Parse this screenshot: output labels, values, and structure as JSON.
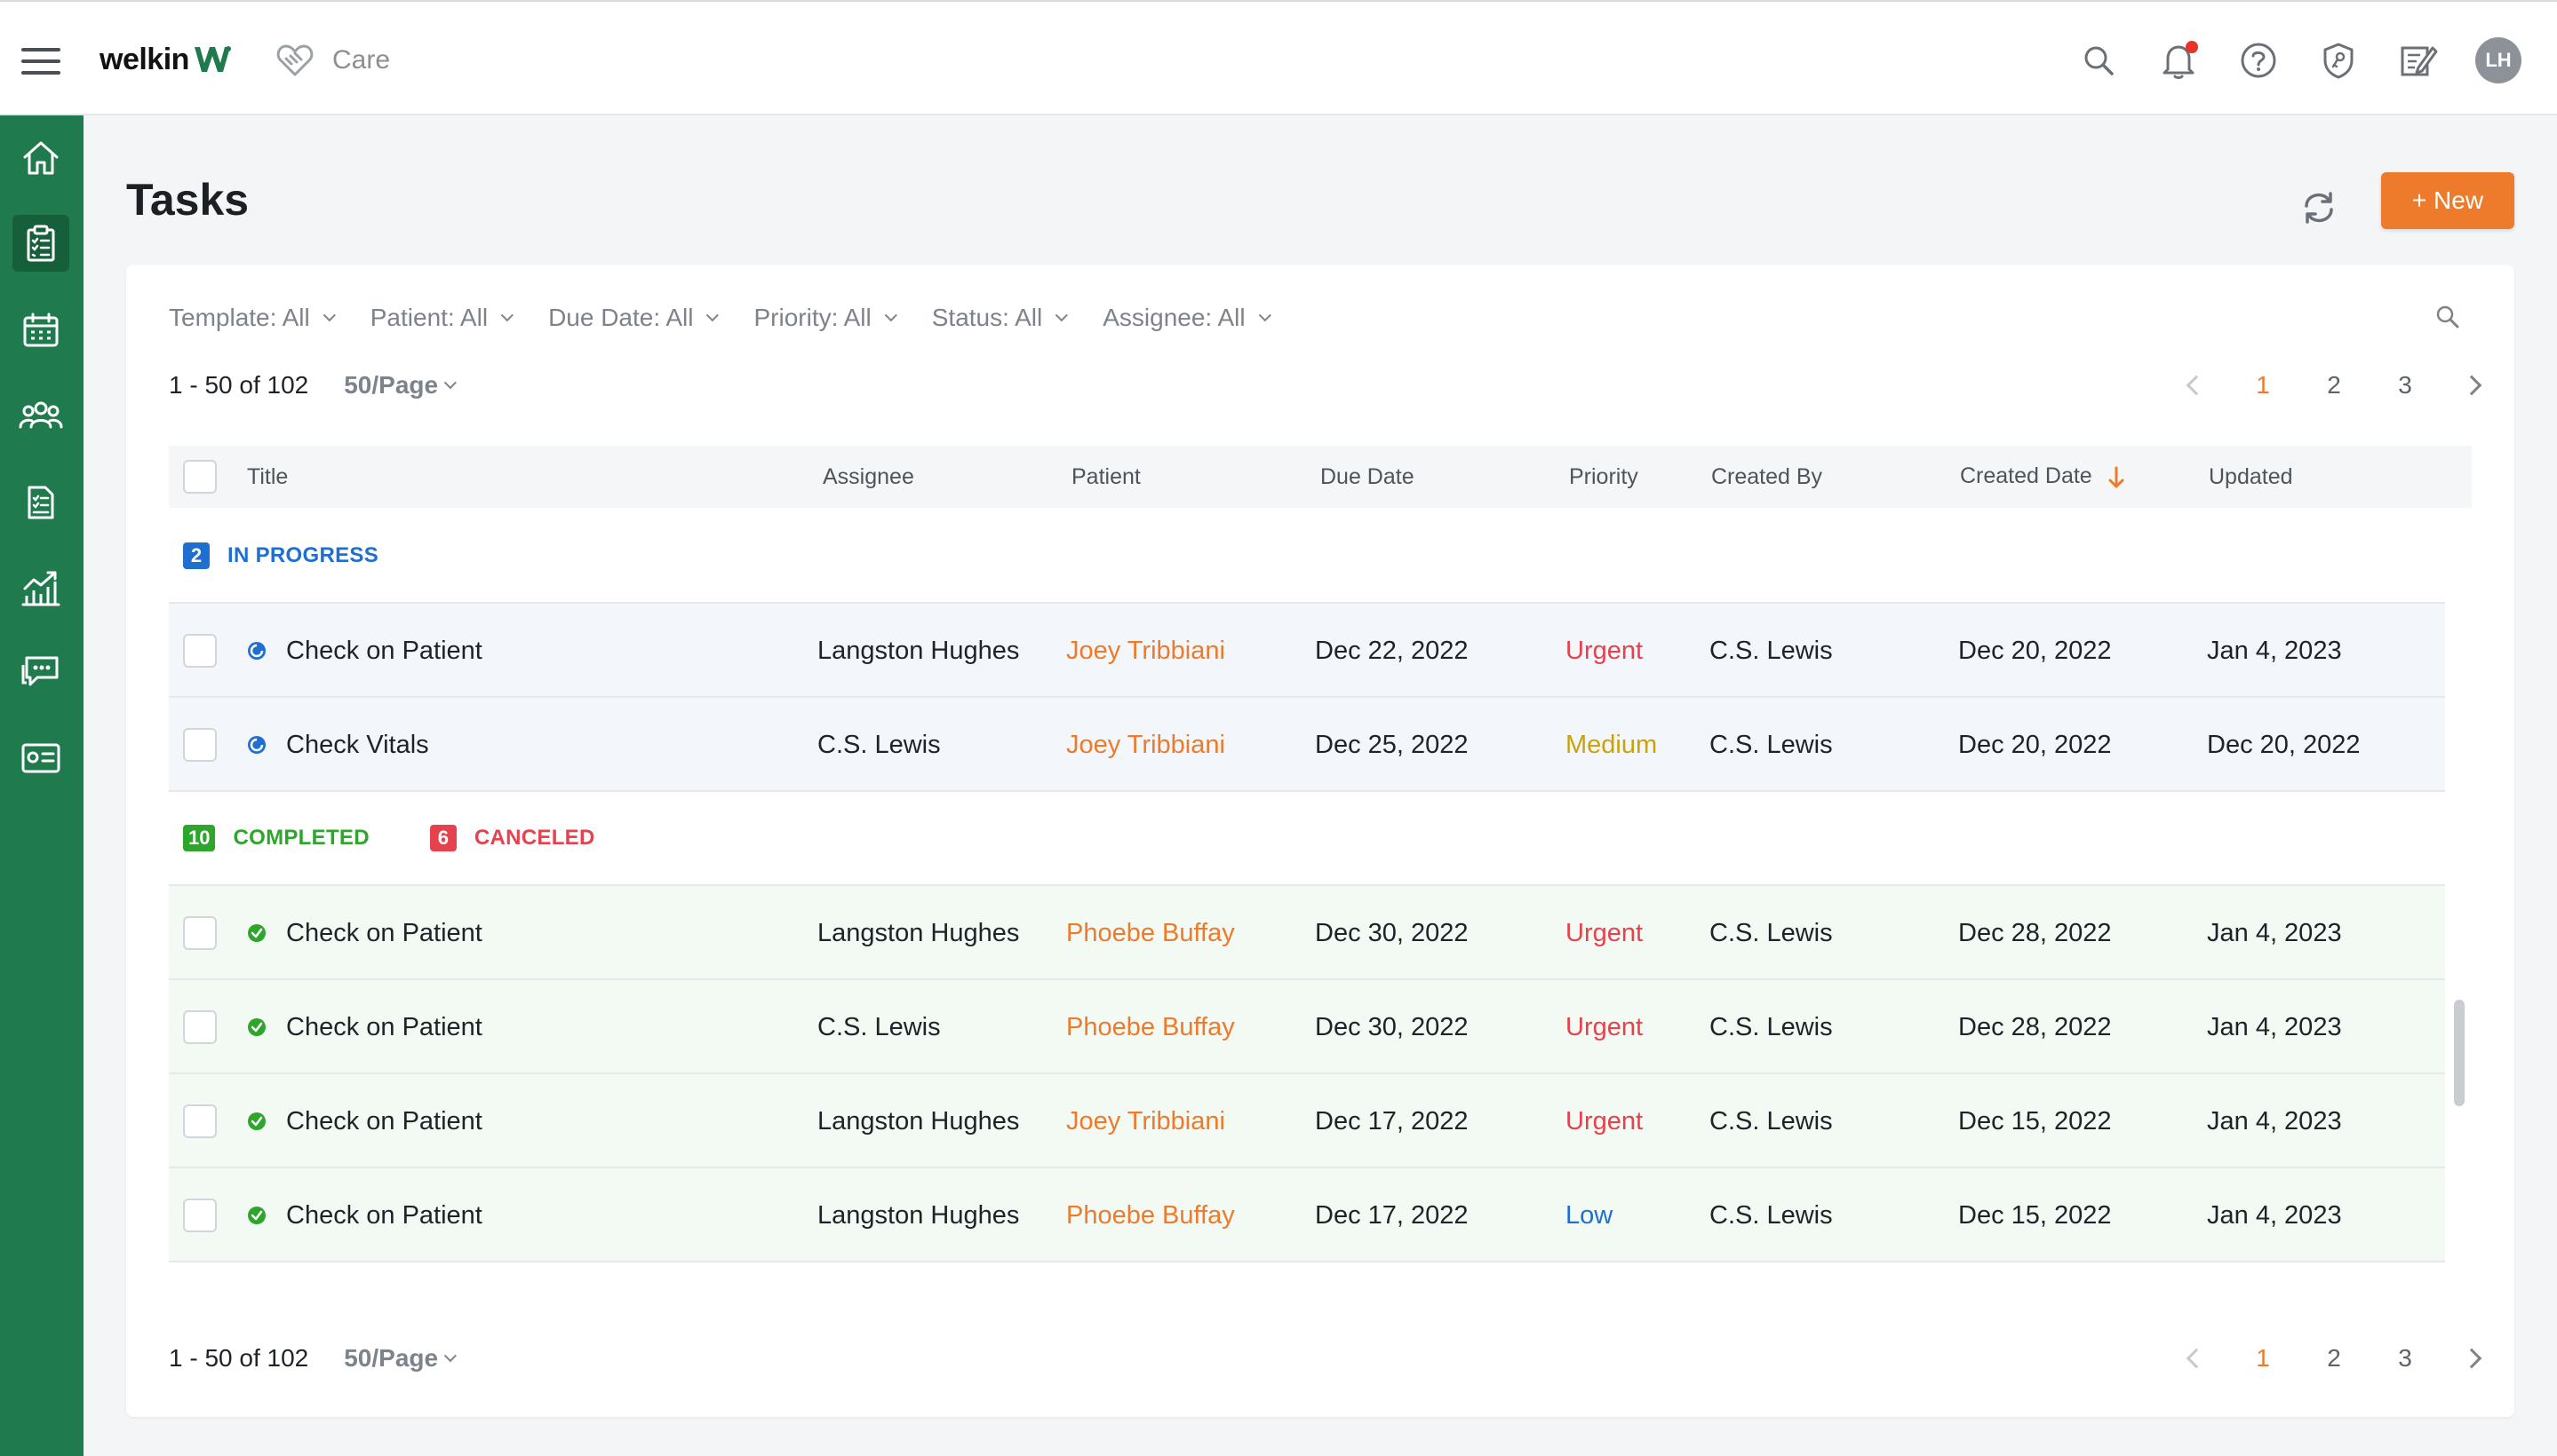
{
  "header": {
    "logo_text": "welkin",
    "module_label": "Care"
  },
  "page": {
    "title": "Tasks",
    "new_button_label": "+ New"
  },
  "filters": [
    {
      "label": "Template: All"
    },
    {
      "label": "Patient: All"
    },
    {
      "label": "Due Date: All"
    },
    {
      "label": "Priority: All"
    },
    {
      "label": "Status: All"
    },
    {
      "label": "Assignee: All"
    }
  ],
  "pagination": {
    "range_text": "1 - 50 of 102",
    "per_page": "50/Page",
    "pages": [
      "1",
      "2",
      "3"
    ],
    "current_page": "1"
  },
  "table": {
    "columns": {
      "title": "Title",
      "assignee": "Assignee",
      "patient": "Patient",
      "due_date": "Due Date",
      "priority": "Priority",
      "created_by": "Created By",
      "created_date": "Created Date",
      "updated": "Updated"
    },
    "groups": {
      "in_progress": {
        "count": "2",
        "label": "IN PROGRESS",
        "color": "#1f6fd1"
      },
      "completed": {
        "count": "10",
        "label": "COMPLETED",
        "color": "#2ea52b"
      },
      "canceled": {
        "count": "6",
        "label": "CANCELED",
        "color": "#e5424d"
      }
    },
    "in_progress_rows": [
      {
        "title": "Check on Patient",
        "assignee": "Langston Hughes",
        "patient": "Joey Tribbiani",
        "due_date": "Dec 22, 2022",
        "priority": "Urgent",
        "priority_color": "#e5424d",
        "created_by": "C.S. Lewis",
        "created_date": "Dec 20, 2022",
        "updated": "Jan 4, 2023"
      },
      {
        "title": "Check Vitals",
        "assignee": "C.S. Lewis",
        "patient": "Joey Tribbiani",
        "due_date": "Dec 25, 2022",
        "priority": "Medium",
        "priority_color": "#c9a20c",
        "created_by": "C.S. Lewis",
        "created_date": "Dec 20, 2022",
        "updated": "Dec 20, 2022"
      }
    ],
    "completed_rows": [
      {
        "title": "Check on Patient",
        "assignee": "Langston Hughes",
        "patient": "Phoebe Buffay",
        "due_date": "Dec 30, 2022",
        "priority": "Urgent",
        "priority_color": "#e5424d",
        "created_by": "C.S. Lewis",
        "created_date": "Dec 28, 2022",
        "updated": "Jan 4, 2023"
      },
      {
        "title": "Check on Patient",
        "assignee": "C.S. Lewis",
        "patient": "Phoebe Buffay",
        "due_date": "Dec 30, 2022",
        "priority": "Urgent",
        "priority_color": "#e5424d",
        "created_by": "C.S. Lewis",
        "created_date": "Dec 28, 2022",
        "updated": "Jan 4, 2023"
      },
      {
        "title": "Check on Patient",
        "assignee": "Langston Hughes",
        "patient": "Joey Tribbiani",
        "due_date": "Dec 17, 2022",
        "priority": "Urgent",
        "priority_color": "#e5424d",
        "created_by": "C.S. Lewis",
        "created_date": "Dec 15, 2022",
        "updated": "Jan 4, 2023"
      },
      {
        "title": "Check on Patient",
        "assignee": "Langston Hughes",
        "patient": "Phoebe Buffay",
        "due_date": "Dec 17, 2022",
        "priority": "Low",
        "priority_color": "#1f6fd1",
        "created_by": "C.S. Lewis",
        "created_date": "Dec 15, 2022",
        "updated": "Jan 4, 2023"
      }
    ]
  },
  "colors": {
    "accent": "#ee7a2b",
    "sidebar": "#1f7a4d",
    "sidebar_active": "#15603b"
  },
  "icons": {
    "sidebar": [
      "home-icon",
      "tasks-clipboard-icon",
      "calendar-icon",
      "patients-group-icon",
      "documents-icon",
      "analytics-chart-icon",
      "messages-icon",
      "id-card-icon"
    ],
    "topbar": [
      "search-icon",
      "notification-bell-icon",
      "help-icon",
      "security-shield-icon",
      "notes-icon"
    ]
  },
  "user": {
    "initials": "LH"
  }
}
